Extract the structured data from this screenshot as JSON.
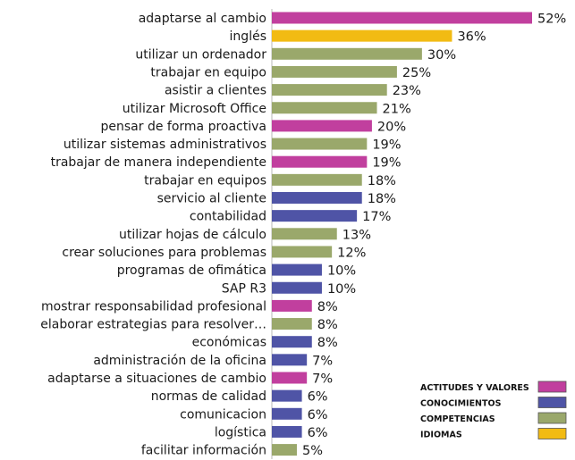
{
  "chart_data": {
    "type": "bar",
    "orientation": "horizontal",
    "title": "",
    "xlabel": "",
    "ylabel": "",
    "xlim": [
      0,
      52
    ],
    "value_suffix": "%",
    "grid": false,
    "legend_position": "bottom-right",
    "groups": [
      {
        "key": "actitudes",
        "name": "ACTITUDES Y VALORES",
        "color": "#c13f9e"
      },
      {
        "key": "conocimientos",
        "name": "CONOCIMIENTOS",
        "color": "#4f54a6"
      },
      {
        "key": "competencias",
        "name": "COMPETENCIAS",
        "color": "#9aa86b"
      },
      {
        "key": "idiomas",
        "name": "IDIOMAS",
        "color": "#f2bb13"
      }
    ],
    "categories": [
      "adaptarse al cambio",
      "inglés",
      "utilizar un ordenador",
      "trabajar en equipo",
      "asistir a clientes",
      "utilizar Microsoft Office",
      "pensar de forma proactiva",
      "utilizar sistemas administrativos",
      "trabajar de manera independiente",
      "trabajar en equipos",
      "servicio al cliente",
      "contabilidad",
      "utilizar hojas de cálculo",
      "crear soluciones para problemas",
      "programas de ofimática",
      "SAP R3",
      "mostrar responsabilidad profesional",
      "elaborar estrategias para resolver…",
      "económicas",
      "administración de la oficina",
      "adaptarse a situaciones de cambio",
      "normas de calidad",
      "comunicacion",
      "logística",
      "facilitar información"
    ],
    "values": [
      52,
      36,
      30,
      25,
      23,
      21,
      20,
      19,
      19,
      18,
      18,
      17,
      13,
      12,
      10,
      10,
      8,
      8,
      8,
      7,
      7,
      6,
      6,
      6,
      5
    ],
    "value_labels": [
      "52%",
      "36%",
      "30%",
      "25%",
      "23%",
      "21%",
      "20%",
      "19%",
      "19%",
      "18%",
      "18%",
      "17%",
      "13%",
      "12%",
      "10%",
      "10%",
      "8%",
      "8%",
      "8%",
      "7%",
      "7%",
      "6%",
      "6%",
      "6%",
      "5%"
    ],
    "bar_groups": [
      "actitudes",
      "idiomas",
      "competencias",
      "competencias",
      "competencias",
      "competencias",
      "actitudes",
      "competencias",
      "actitudes",
      "competencias",
      "conocimientos",
      "conocimientos",
      "competencias",
      "competencias",
      "conocimientos",
      "conocimientos",
      "actitudes",
      "competencias",
      "conocimientos",
      "conocimientos",
      "actitudes",
      "conocimientos",
      "conocimientos",
      "conocimientos",
      "competencias"
    ]
  }
}
